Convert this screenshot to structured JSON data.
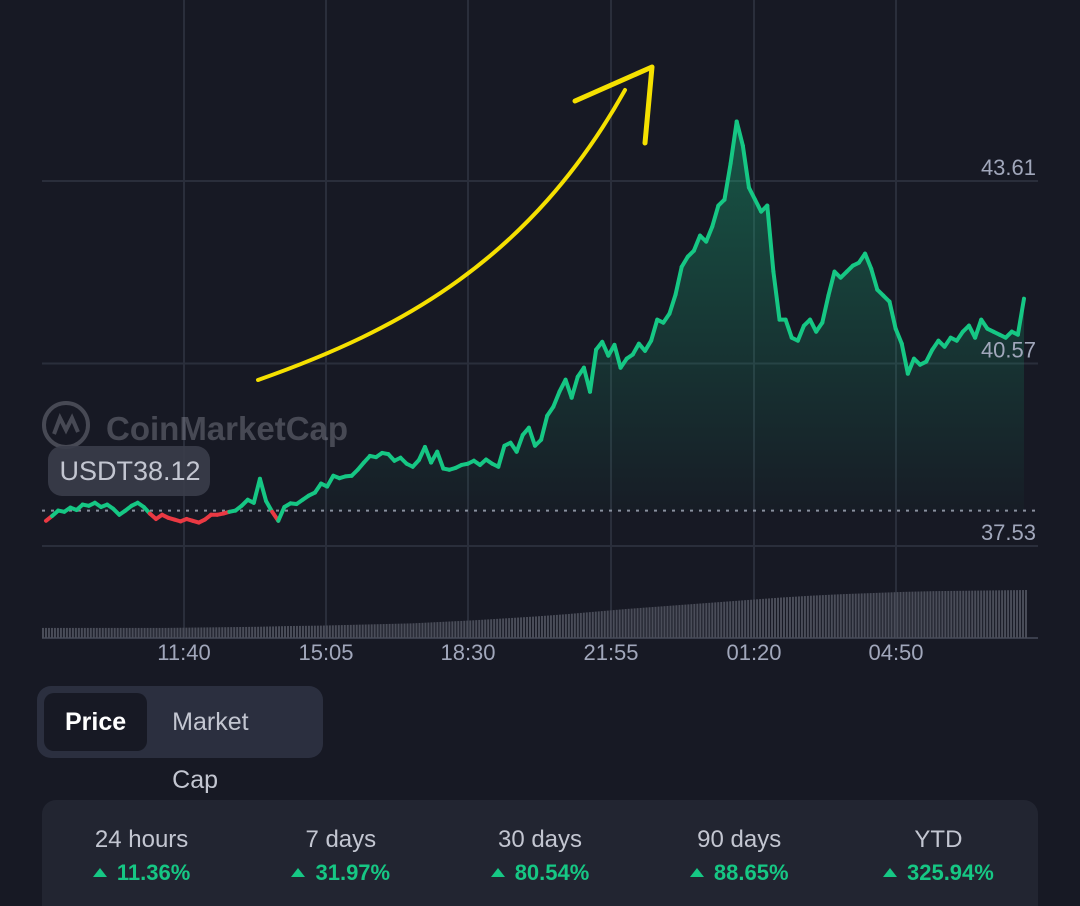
{
  "chart_data": {
    "type": "area",
    "x_tick_labels": [
      "11:40",
      "15:05",
      "18:30",
      "21:55",
      "01:20",
      "04:50"
    ],
    "y_tick_labels": [
      "43.61",
      "40.57",
      "37.53"
    ],
    "y_ticks": [
      43.61,
      40.57,
      37.53
    ],
    "reference_label": "USDT38.12",
    "reference_value": 38.12,
    "watermark": "CoinMarketCap",
    "up_color": "#16c784",
    "down_color": "#ea3943",
    "prices": [
      37.95,
      38.03,
      38.12,
      38.1,
      38.17,
      38.13,
      38.22,
      38.2,
      38.25,
      38.18,
      38.22,
      38.15,
      38.05,
      38.12,
      38.2,
      38.25,
      38.18,
      38.07,
      37.98,
      38.05,
      38.0,
      37.97,
      37.94,
      37.98,
      37.95,
      37.92,
      37.97,
      38.05,
      38.05,
      38.07,
      38.1,
      38.12,
      38.2,
      38.3,
      38.25,
      38.65,
      38.28,
      38.1,
      37.95,
      38.18,
      38.24,
      38.23,
      38.3,
      38.37,
      38.42,
      38.57,
      38.52,
      38.7,
      38.66,
      38.69,
      38.7,
      38.8,
      38.92,
      39.03,
      39.01,
      39.08,
      39.06,
      38.95,
      39.0,
      38.9,
      38.85,
      38.96,
      39.18,
      38.92,
      39.1,
      38.82,
      38.8,
      38.83,
      38.88,
      38.9,
      38.95,
      38.88,
      38.97,
      38.9,
      38.85,
      39.2,
      39.25,
      39.1,
      39.38,
      39.5,
      39.2,
      39.3,
      39.7,
      39.85,
      40.1,
      40.3,
      40.0,
      40.35,
      40.5,
      40.1,
      40.8,
      40.93,
      40.7,
      40.88,
      40.5,
      40.65,
      40.72,
      40.9,
      40.78,
      40.95,
      41.3,
      41.25,
      41.4,
      41.72,
      42.18,
      42.35,
      42.45,
      42.7,
      42.6,
      42.85,
      43.2,
      43.3,
      43.9,
      44.6,
      44.2,
      43.5,
      43.3,
      43.1,
      43.2,
      42.1,
      41.3,
      41.3,
      41.0,
      40.95,
      41.2,
      41.3,
      41.1,
      41.25,
      41.7,
      42.1,
      42.0,
      42.1,
      42.2,
      42.25,
      42.4,
      42.15,
      41.8,
      41.7,
      41.6,
      41.15,
      40.9,
      40.4,
      40.65,
      40.55,
      40.6,
      40.8,
      40.95,
      40.85,
      41.0,
      40.95,
      41.1,
      41.2,
      41.0,
      41.3,
      41.15,
      41.1,
      41.05,
      41.0,
      41.1,
      41.05,
      41.65
    ],
    "volume": [
      0.0,
      0.0,
      0.0,
      0.0,
      0.0,
      0.01,
      0.02,
      0.03,
      0.05,
      0.06,
      0.08,
      0.1,
      0.12,
      0.16,
      0.2,
      0.25,
      0.3,
      0.36,
      0.43,
      0.5,
      0.56,
      0.62,
      0.68,
      0.74,
      0.8,
      0.85,
      0.89,
      0.92,
      0.95,
      0.97,
      0.98,
      0.99,
      1.0
    ],
    "volume_base": 0.21
  },
  "annotation": {
    "color": "#f5e000",
    "description": "hand-drawn arrow"
  },
  "tabs": [
    {
      "label": "Price",
      "active": true
    },
    {
      "label": "Market Cap",
      "active": false
    }
  ],
  "performance": [
    {
      "label": "24 hours",
      "value": "11.36%"
    },
    {
      "label": "7 days",
      "value": "31.97%"
    },
    {
      "label": "30 days",
      "value": "80.54%"
    },
    {
      "label": "90 days",
      "value": "88.65%"
    },
    {
      "label": "YTD",
      "value": "325.94%"
    }
  ],
  "icons": {
    "watermark_logo": "coinmarketcap-logo-icon",
    "trend": "up-caret-icon"
  }
}
